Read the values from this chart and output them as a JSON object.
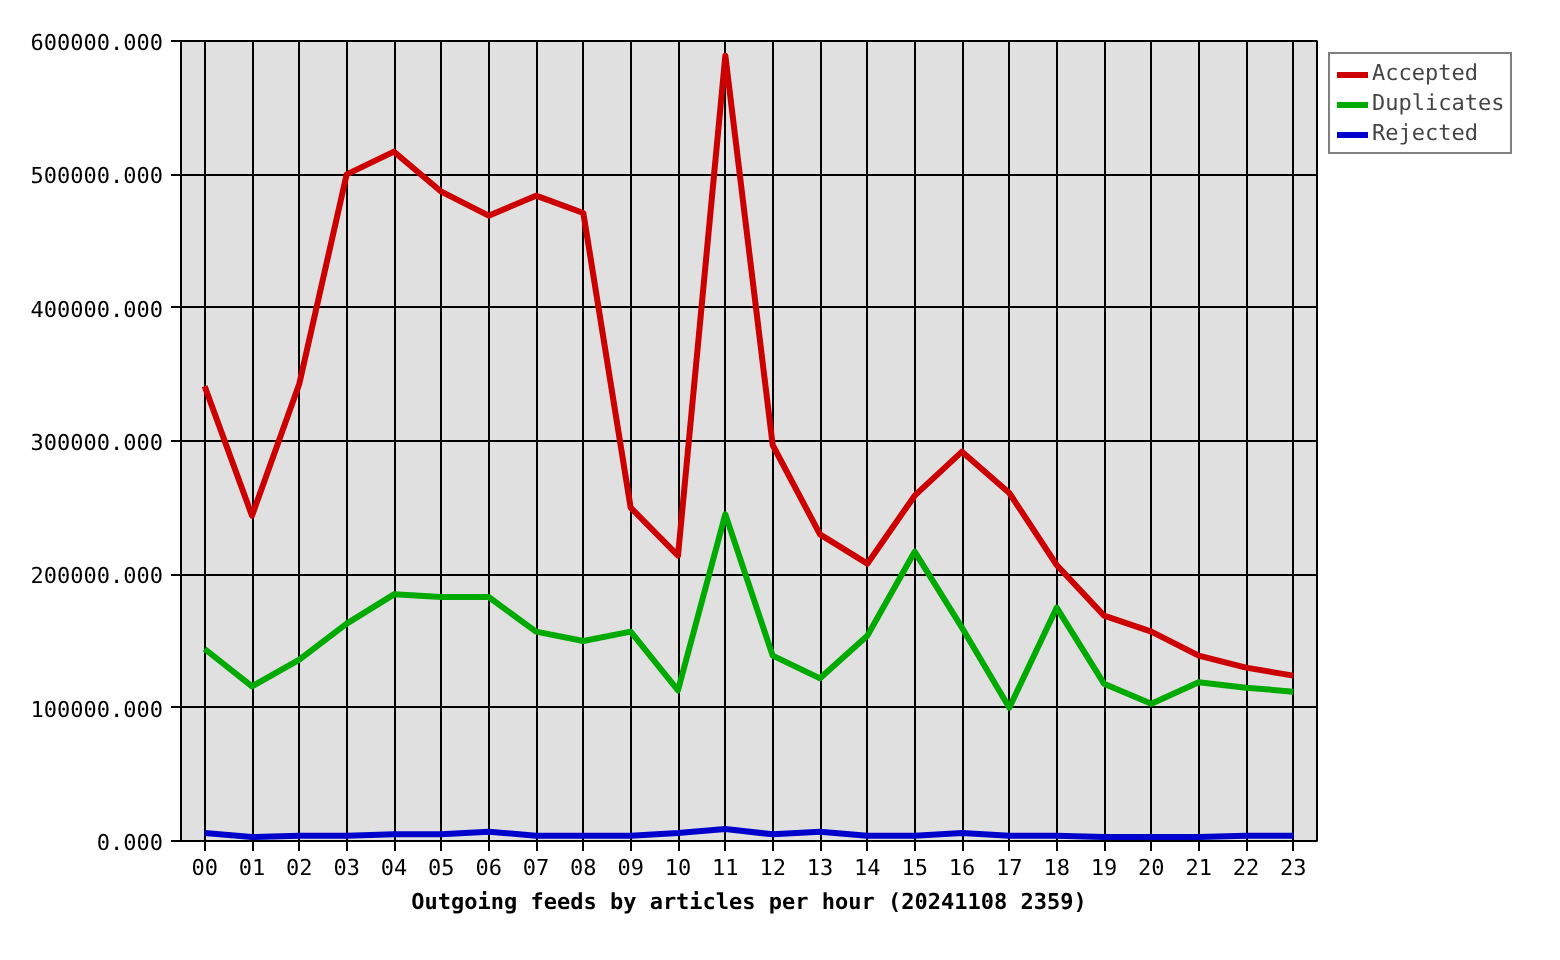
{
  "chart_data": {
    "type": "line",
    "xlabel": "Outgoing feeds by articles per hour (20241108 2359)",
    "categories": [
      "00",
      "01",
      "02",
      "03",
      "04",
      "05",
      "06",
      "07",
      "08",
      "09",
      "10",
      "11",
      "12",
      "13",
      "14",
      "15",
      "16",
      "17",
      "18",
      "19",
      "20",
      "21",
      "22",
      "23"
    ],
    "series": [
      {
        "name": "Accepted",
        "color": "#cc0000",
        "values": [
          341000,
          244000,
          343000,
          500000,
          517000,
          487000,
          469000,
          484000,
          471000,
          250000,
          214000,
          589000,
          297000,
          230000,
          208000,
          259000,
          292000,
          261000,
          207000,
          169000,
          157000,
          139000,
          130000,
          124000
        ]
      },
      {
        "name": "Duplicates",
        "color": "#00aa00",
        "values": [
          144000,
          116000,
          136000,
          163000,
          185000,
          183000,
          183000,
          157000,
          150000,
          157000,
          113000,
          245000,
          139000,
          122000,
          154000,
          217000,
          160000,
          100000,
          175000,
          118000,
          103000,
          119000,
          115000,
          112000
        ]
      },
      {
        "name": "Rejected",
        "color": "#0000cc",
        "values": [
          6000,
          3000,
          4000,
          4000,
          5000,
          5000,
          7000,
          4000,
          4000,
          4000,
          6000,
          9000,
          5000,
          7000,
          4000,
          4000,
          6000,
          4000,
          4000,
          3000,
          3000,
          3000,
          4000,
          4000
        ]
      }
    ],
    "ylim": [
      0,
      600000
    ],
    "yticks": [
      {
        "value": 0,
        "label": "0.000"
      },
      {
        "value": 100000,
        "label": "100000.000"
      },
      {
        "value": 200000,
        "label": "200000.000"
      },
      {
        "value": 300000,
        "label": "300000.000"
      },
      {
        "value": 400000,
        "label": "400000.000"
      },
      {
        "value": 500000,
        "label": "500000.000"
      },
      {
        "value": 600000,
        "label": "600000.000"
      }
    ],
    "grid": true,
    "legend": "top right",
    "line_style": "solid"
  }
}
